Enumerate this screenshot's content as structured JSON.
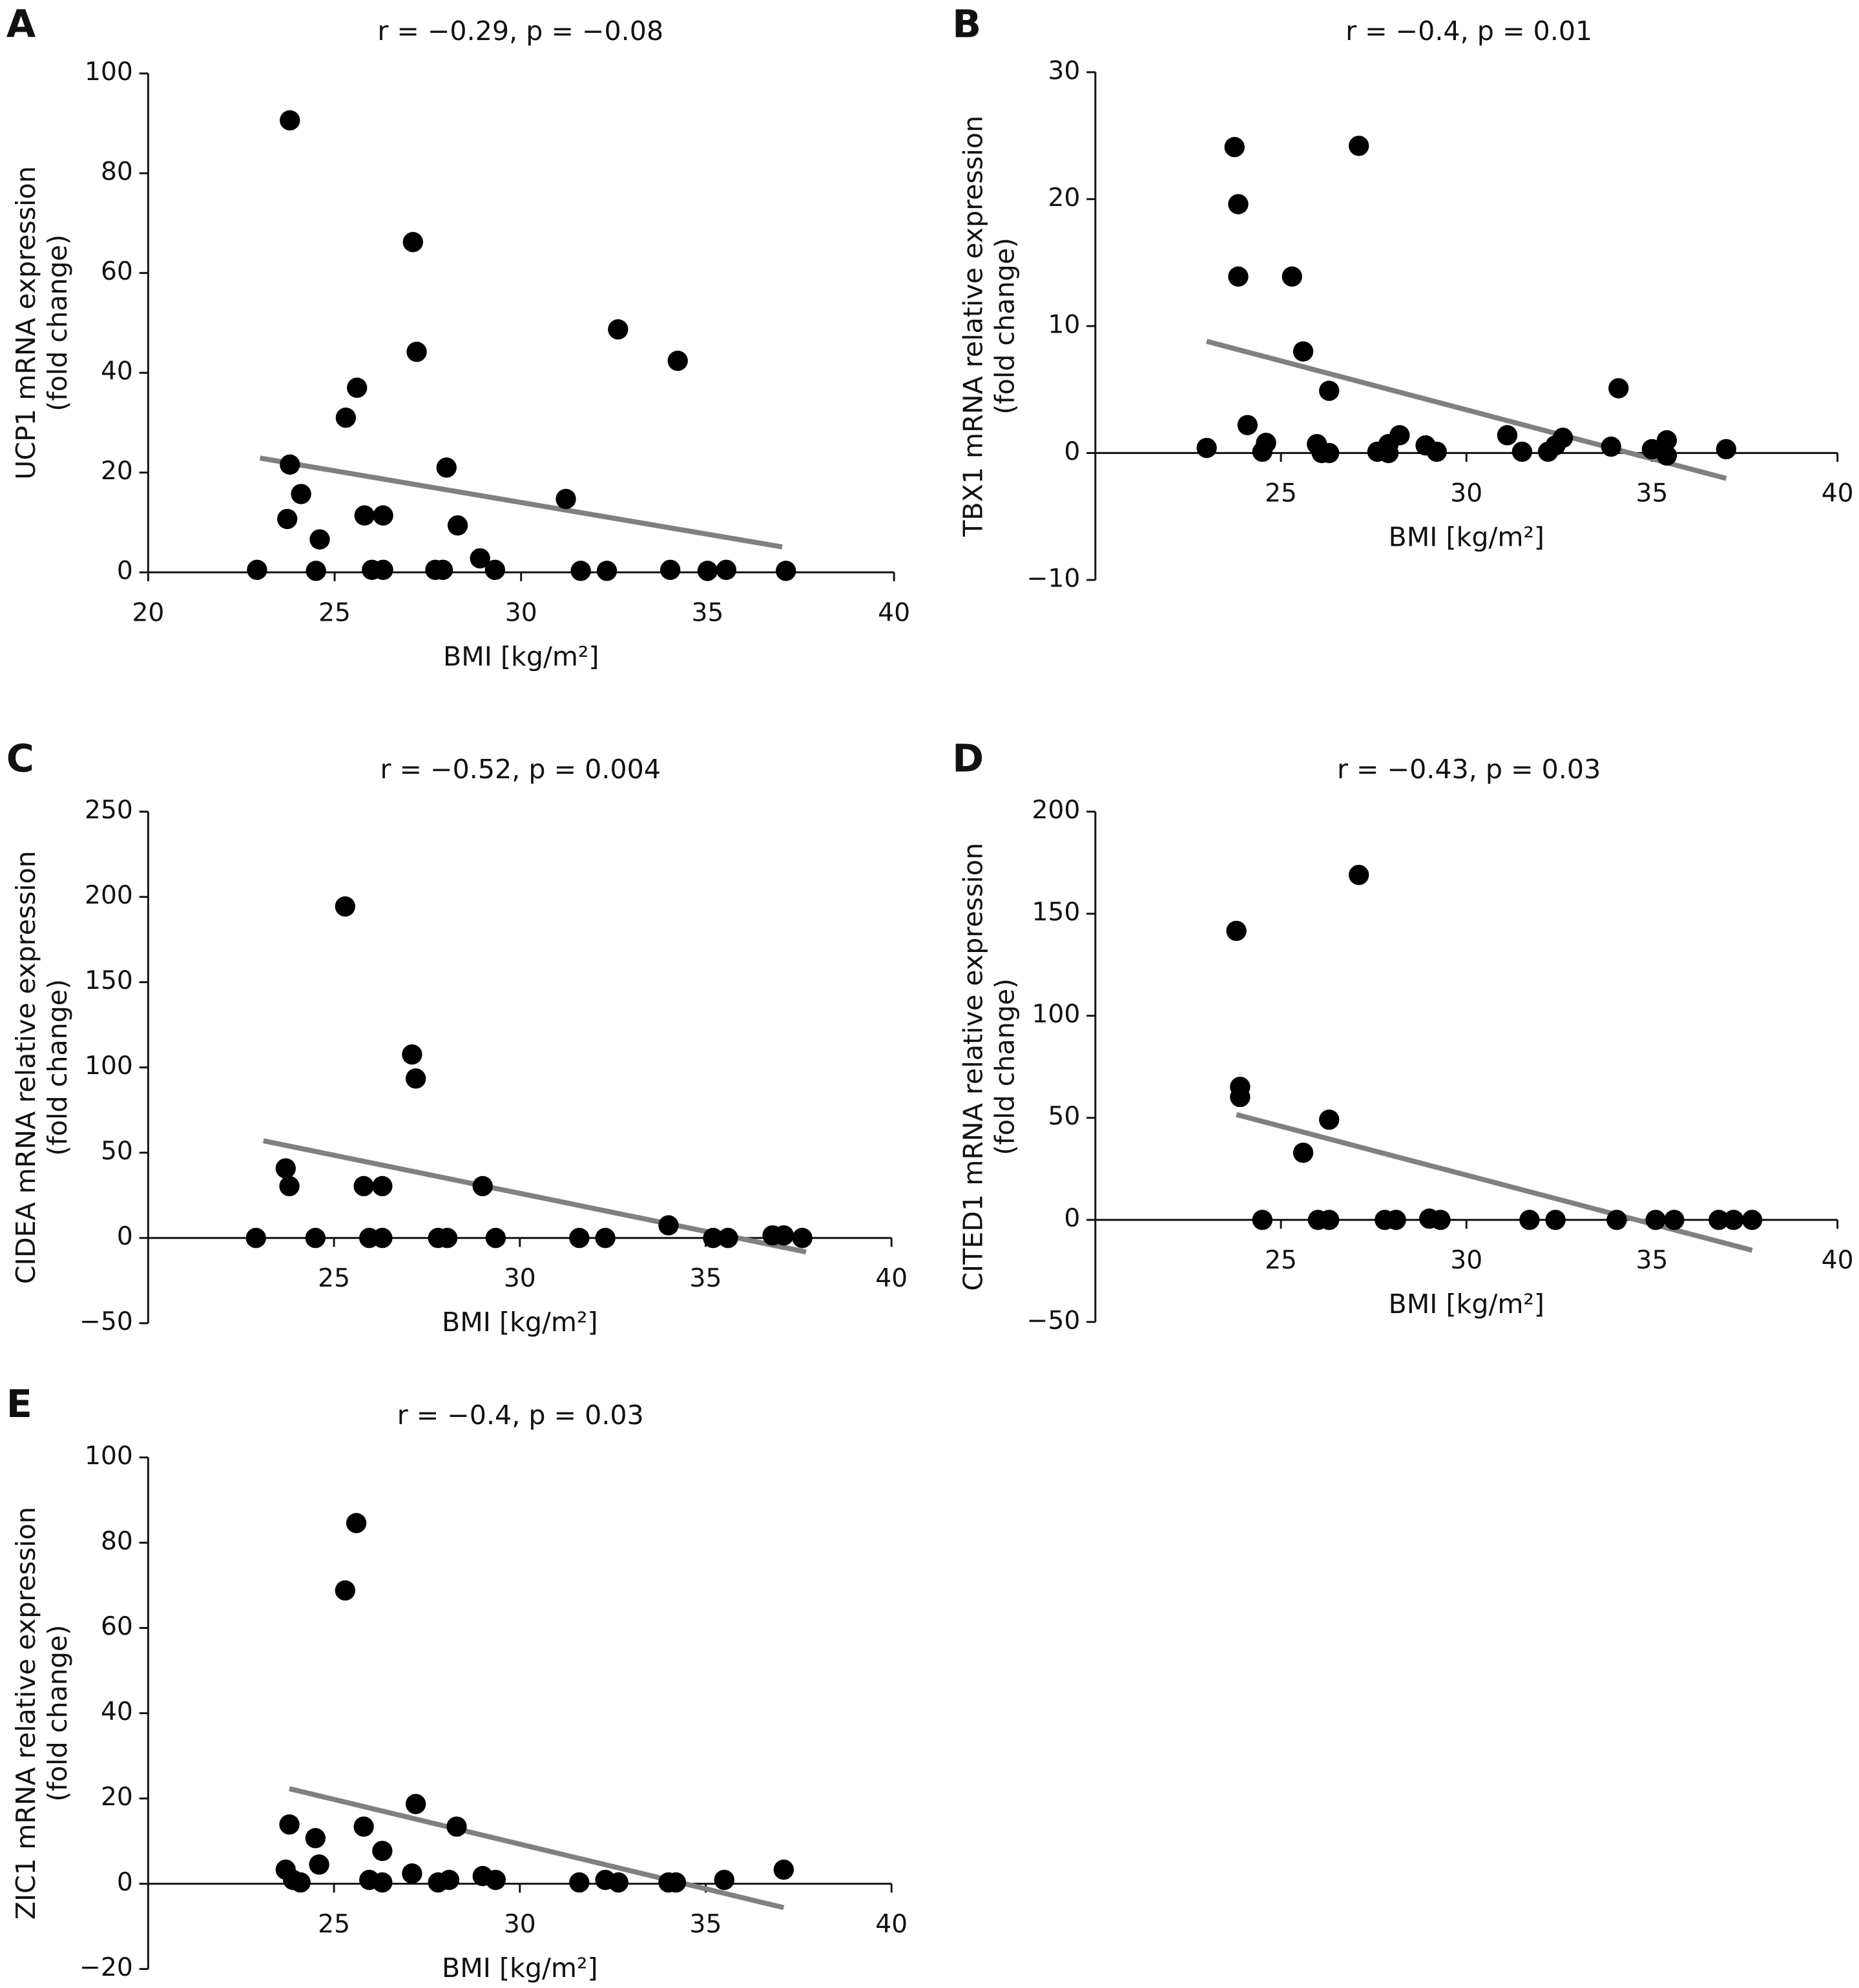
{
  "chart_data": [
    {
      "type": "scatter",
      "panel": "A",
      "title": "r = −0.29, p = −0.08",
      "ylabel": [
        "UCP1 mRNA expression",
        "(fold change)"
      ],
      "xlabel": "BMI [kg/m²]",
      "x": [
        22.92,
        23.8,
        23.73,
        23.8,
        24.1,
        24.6,
        24.5,
        25.3,
        25.6,
        25.8,
        26.0,
        26.3,
        26.3,
        27.1,
        27.2,
        27.7,
        27.9,
        28.0,
        28.3,
        28.9,
        29.3,
        31.2,
        31.6,
        32.3,
        32.6,
        34.0,
        34.2,
        35.0,
        35.5,
        37.1
      ],
      "y": [
        0.5,
        90.6,
        10.7,
        21.6,
        15.7,
        6.6,
        0.3,
        31,
        37,
        11.4,
        0.5,
        11.4,
        0.5,
        66.2,
        44.2,
        0.5,
        0.5,
        21,
        9.4,
        2.8,
        0.5,
        14.7,
        0.3,
        0.3,
        48.7,
        0.5,
        42.4,
        0.3,
        0.5,
        0.3
      ],
      "trend": {
        "x": [
          23.0,
          37.0
        ],
        "y": [
          22.9,
          5.1
        ]
      },
      "xlim": [
        20,
        40
      ],
      "ylim": [
        0,
        100
      ],
      "xticks": [
        20,
        25,
        30,
        35,
        40
      ],
      "yticks": [
        0,
        20,
        40,
        60,
        80,
        100
      ],
      "color": "#000000",
      "trend_color": "#808080"
    },
    {
      "type": "scatter",
      "panel": "B",
      "title": "r = −0.4, p = 0.01",
      "ylabel": [
        "TBX1 mRNA relative expression",
        "(fold change)"
      ],
      "xlabel": "BMI [kg/m²]",
      "x": [
        23.0,
        23.75,
        23.85,
        23.85,
        24.1,
        24.5,
        24.6,
        25.3,
        25.6,
        25.97,
        26.1,
        26.3,
        26.3,
        27.1,
        27.6,
        27.9,
        27.9,
        28.2,
        28.9,
        29.2,
        31.1,
        31.5,
        32.2,
        32.4,
        32.6,
        33.9,
        34.1,
        35.0,
        35.4,
        35.4,
        37.0
      ],
      "y": [
        0.4,
        24.1,
        19.6,
        13.9,
        2.2,
        0.1,
        0.8,
        13.9,
        8.0,
        0.7,
        0,
        4.9,
        0,
        24.2,
        0.1,
        0.7,
        0,
        1.4,
        0.6,
        0.1,
        1.4,
        0.1,
        0.1,
        0.6,
        1.2,
        0.5,
        5.1,
        0.3,
        1.0,
        -0.2,
        0.3
      ],
      "trend": {
        "x": [
          23.0,
          37.0
        ],
        "y": [
          8.8,
          -2.0
        ]
      },
      "xlim": [
        20,
        40
      ],
      "ylim": [
        -10,
        30
      ],
      "xticks": [
        25,
        30,
        35,
        40
      ],
      "yticks": [
        {
          "value": -10,
          "label": "−10"
        },
        0,
        10,
        20,
        30
      ],
      "color": "#000000",
      "trend_color": "#808080"
    },
    {
      "type": "scatter",
      "panel": "C",
      "title": "r = −0.52, p = 0.004",
      "ylabel": [
        "CIDEA mRNA relative expression",
        "(fold change)"
      ],
      "xlabel": "BMI [kg/m²]",
      "x": [
        22.9,
        23.7,
        23.8,
        24.5,
        25.3,
        25.8,
        25.95,
        26.3,
        26.3,
        27.1,
        27.2,
        27.8,
        28.05,
        29.0,
        29.35,
        31.6,
        32.3,
        34.0,
        35.2,
        35.6,
        36.8,
        37.1,
        37.6
      ],
      "y": [
        0,
        40.8,
        30.4,
        0,
        194.4,
        30.4,
        0,
        30.4,
        0,
        107.6,
        93.5,
        0,
        0,
        30.4,
        0,
        0,
        0,
        7.4,
        0,
        0,
        1.5,
        1.5,
        0
      ],
      "trend": {
        "x": [
          23.1,
          37.7
        ],
        "y": [
          57,
          -8.2
        ]
      },
      "xlim": [
        20,
        40
      ],
      "ylim": [
        -50,
        250
      ],
      "xticks": [
        25,
        30,
        35,
        40
      ],
      "yticks": [
        {
          "value": -50,
          "label": "−50"
        },
        0,
        50,
        100,
        150,
        200,
        250
      ],
      "color": "#000000",
      "trend_color": "#808080"
    },
    {
      "type": "scatter",
      "panel": "D",
      "title": "r = −0.43, p = 0.03",
      "ylabel": [
        "CITED1 mRNA relative expression",
        "(fold change)"
      ],
      "xlabel": "BMI [kg/m²]",
      "x": [
        23.8,
        23.9,
        23.9,
        24.5,
        25.6,
        26.0,
        26.3,
        26.3,
        27.1,
        27.8,
        28.1,
        29.0,
        29.3,
        31.7,
        32.4,
        34.05,
        35.1,
        35.6,
        36.8,
        37.2,
        37.7
      ],
      "y": [
        141.6,
        65.2,
        60.2,
        0,
        32.9,
        0,
        49.1,
        0,
        169,
        0,
        0,
        0.6,
        0,
        0,
        0,
        0,
        0,
        0,
        0,
        0,
        0
      ],
      "trend": {
        "x": [
          23.8,
          37.7
        ],
        "y": [
          51.6,
          -14.9
        ]
      },
      "xlim": [
        20,
        40
      ],
      "ylim": [
        -50,
        200
      ],
      "xticks": [
        25,
        30,
        35,
        40
      ],
      "yticks": [
        {
          "value": -50,
          "label": "−50"
        },
        0,
        50,
        100,
        150,
        200
      ],
      "color": "#000000",
      "trend_color": "#808080"
    },
    {
      "type": "scatter",
      "panel": "E",
      "title": "r = −0.4, p = 0.03",
      "ylabel": [
        "ZIC1 mRNA relative expression",
        "(fold change)"
      ],
      "xlabel": "BMI [kg/m²]",
      "x": [
        23.7,
        23.8,
        23.9,
        24.1,
        24.5,
        24.6,
        25.3,
        25.6,
        25.8,
        25.95,
        26.3,
        26.3,
        27.1,
        27.2,
        27.8,
        28.1,
        28.3,
        29.0,
        29.35,
        31.6,
        32.3,
        32.65,
        34.0,
        34.2,
        35.5,
        37.1
      ],
      "y": [
        3.3,
        13.9,
        0.9,
        0.3,
        10.7,
        4.5,
        68.8,
        84.6,
        13.4,
        0.9,
        0.3,
        7.7,
        2.4,
        18.7,
        0.3,
        0.9,
        13.4,
        1.8,
        0.9,
        0.3,
        0.9,
        0.3,
        0.3,
        0.3,
        0.9,
        3.3
      ],
      "trend": {
        "x": [
          23.8,
          37.1
        ],
        "y": [
          22.3,
          -5.6
        ]
      },
      "xlim": [
        20,
        40
      ],
      "ylim": [
        -20,
        100
      ],
      "xticks": [
        25,
        30,
        35,
        40
      ],
      "yticks": [
        {
          "value": -20,
          "label": "−20"
        },
        0,
        20,
        40,
        60,
        80,
        100
      ],
      "color": "#000000",
      "trend_color": "#808080"
    }
  ]
}
